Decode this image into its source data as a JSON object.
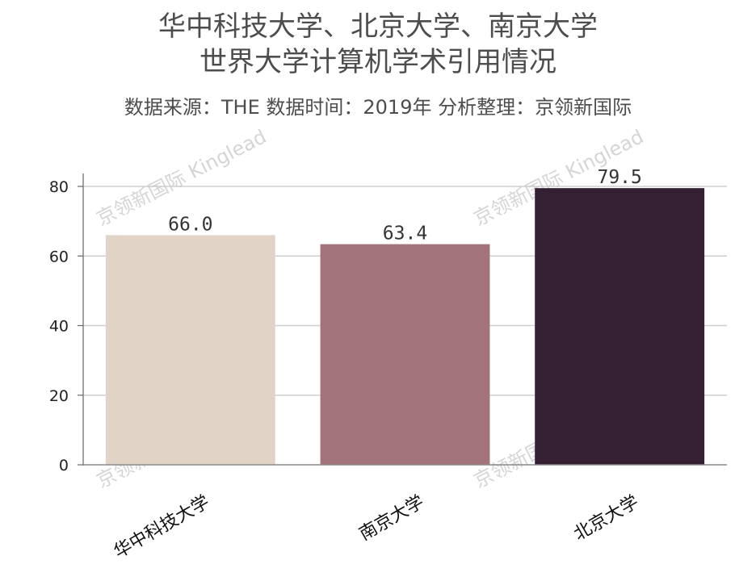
{
  "chart_data": {
    "type": "bar",
    "title_lines": [
      "华中科技大学、北京大学、南京大学",
      "世界大学计算机学术引用情况"
    ],
    "subtitle": "数据来源：THE 数据时间：2019年 分析整理：京领新国际",
    "categories": [
      "华中科技大学",
      "南京大学",
      "北京大学"
    ],
    "values": [
      66.0,
      63.4,
      79.5
    ],
    "value_labels": [
      "66.0",
      "63.4",
      "79.5"
    ],
    "colors": [
      "#e1d4c6",
      "#a3737c",
      "#351f33"
    ],
    "ylim": [
      0,
      80
    ],
    "yticks": [
      0,
      20,
      40,
      60,
      80
    ],
    "grid": true,
    "xlabel": "",
    "ylabel": ""
  },
  "watermark": {
    "text": "京领新国际 Kinglead"
  }
}
